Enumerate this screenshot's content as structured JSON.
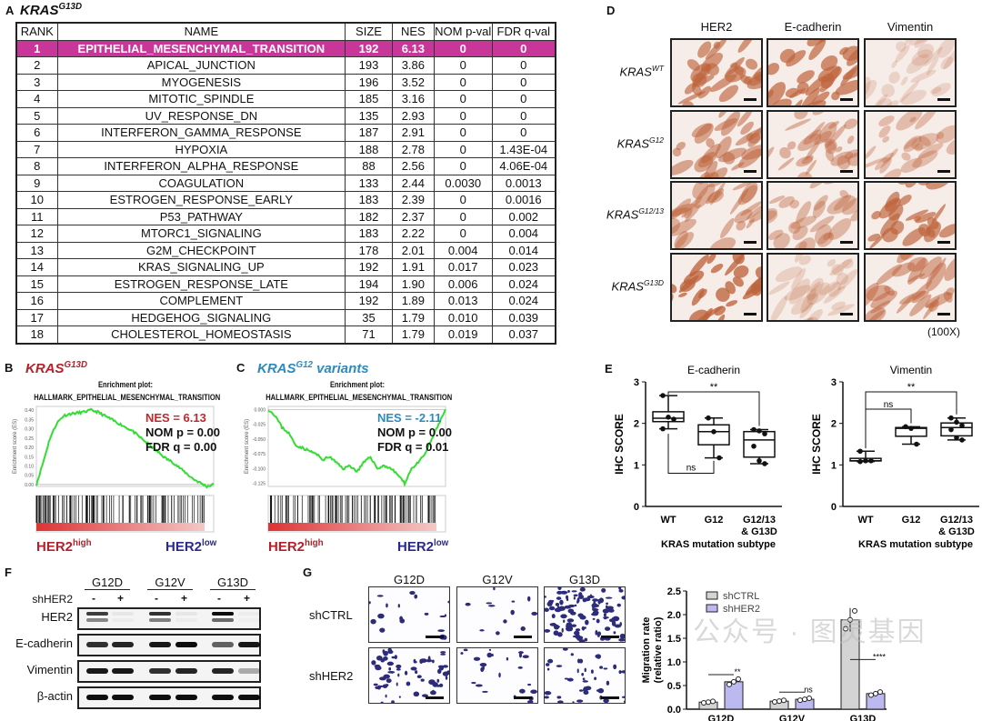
{
  "panelA": {
    "label": "A",
    "title_base": "KRAS",
    "title_sup": "G13D",
    "columns": [
      "RANK",
      "NAME",
      "SIZE",
      "NES",
      "NOM p-val",
      "FDR q-val"
    ],
    "highlight_color": "#c8369a",
    "rows": [
      [
        "1",
        "EPITHELIAL_MESENCHYMAL_TRANSITION",
        "192",
        "6.13",
        "0",
        "0"
      ],
      [
        "2",
        "APICAL_JUNCTION",
        "193",
        "3.86",
        "0",
        "0"
      ],
      [
        "3",
        "MYOGENESIS",
        "196",
        "3.52",
        "0",
        "0"
      ],
      [
        "4",
        "MITOTIC_SPINDLE",
        "185",
        "3.16",
        "0",
        "0"
      ],
      [
        "5",
        "UV_RESPONSE_DN",
        "135",
        "2.93",
        "0",
        "0"
      ],
      [
        "6",
        "INTERFERON_GAMMA_RESPONSE",
        "187",
        "2.91",
        "0",
        "0"
      ],
      [
        "7",
        "HYPOXIA",
        "188",
        "2.78",
        "0",
        "1.43E-04"
      ],
      [
        "8",
        "INTERFERON_ALPHA_RESPONSE",
        "88",
        "2.56",
        "0",
        "4.06E-04"
      ],
      [
        "9",
        "COAGULATION",
        "133",
        "2.44",
        "0.0030",
        "0.0013"
      ],
      [
        "10",
        "ESTROGEN_RESPONSE_EARLY",
        "183",
        "2.39",
        "0",
        "0.0016"
      ],
      [
        "11",
        "P53_PATHWAY",
        "182",
        "2.37",
        "0",
        "0.002"
      ],
      [
        "12",
        "MTORC1_SIGNALING",
        "183",
        "2.22",
        "0",
        "0.004"
      ],
      [
        "13",
        "G2M_CHECKPOINT",
        "178",
        "2.01",
        "0.004",
        "0.014"
      ],
      [
        "14",
        "KRAS_SIGNALING_UP",
        "192",
        "1.91",
        "0.017",
        "0.023"
      ],
      [
        "15",
        "ESTROGEN_RESPONSE_LATE",
        "194",
        "1.90",
        "0.006",
        "0.024"
      ],
      [
        "16",
        "COMPLEMENT",
        "192",
        "1.89",
        "0.013",
        "0.024"
      ],
      [
        "17",
        "HEDGEHOG_SIGNALING",
        "35",
        "1.79",
        "0.010",
        "0.039"
      ],
      [
        "18",
        "CHOLESTEROL_HOMEOSTASIS",
        "71",
        "1.79",
        "0.019",
        "0.037"
      ]
    ]
  },
  "panelB": {
    "label": "B",
    "title_base": "KRAS",
    "title_sup": "G13D",
    "title_color": "#b5202a",
    "plot_title1": "Enrichment plot:",
    "plot_title2": "HALLMARK_EPITHELIAL_MESENCHYMAL_TRANSITION",
    "ylabel": "Enrichment score (ES)",
    "yticks": [
      "0.40",
      "0.35",
      "0.30",
      "0.25",
      "0.20",
      "0.15",
      "0.10",
      "0.05",
      "0.00"
    ],
    "ylim": [
      -0.01,
      0.42
    ],
    "es_curve": [
      0,
      0.12,
      0.25,
      0.33,
      0.37,
      0.38,
      0.385,
      0.39,
      0.4,
      0.39,
      0.37,
      0.35,
      0.33,
      0.31,
      0.29,
      0.26,
      0.23,
      0.2,
      0.17,
      0.14,
      0.12,
      0.09,
      0.06,
      0.03,
      0.01,
      -0.01,
      0
    ],
    "nes": "NES = 6.13",
    "nom": "NOM p = 0.00",
    "fdr": "FDR q = 0.00",
    "nes_color": "#c0282e",
    "high_base": "HER2",
    "high_sup": "high",
    "low_base": "HER2",
    "low_sup": "low"
  },
  "panelC": {
    "label": "C",
    "title_base": "KRAS",
    "title_sup": "G12",
    "title_suffix": " variants",
    "title_color": "#2a8bbf",
    "plot_title1": "Enrichment plot:",
    "plot_title2": "HALLMARK_EPITHELIAL_MESENCHYMAL_TRANSITION",
    "ylabel": "Enrichment score (ES)",
    "yticks": [
      "0.000",
      "-0.025",
      "-0.050",
      "-0.075",
      "-0.100",
      "-0.125"
    ],
    "ylim": [
      -0.13,
      0.005
    ],
    "es_curve": [
      0,
      -0.01,
      -0.03,
      -0.04,
      -0.06,
      -0.065,
      -0.07,
      -0.075,
      -0.085,
      -0.08,
      -0.09,
      -0.1,
      -0.095,
      -0.105,
      -0.09,
      -0.08,
      -0.1,
      -0.095,
      -0.1,
      -0.11,
      -0.125,
      -0.1,
      -0.09,
      -0.075,
      -0.05,
      -0.025,
      0
    ],
    "nes": "NES = -2.11",
    "nom": "NOM p = 0.00",
    "fdr": "FDR q = 0.01",
    "nes_color": "#2a8bbf",
    "high_base": "HER2",
    "high_sup": "high",
    "low_base": "HER2",
    "low_sup": "low"
  },
  "curve_color": "#33dd33",
  "high_color": "#b5202a",
  "low_color": "#2a2a8a",
  "panelD": {
    "label": "D",
    "columns": [
      "HER2",
      "E-cadherin",
      "Vimentin"
    ],
    "rows": [
      {
        "base": "KRAS",
        "sup": "WT"
      },
      {
        "base": "KRAS",
        "sup": "G12"
      },
      {
        "base": "KRAS",
        "sup": "G12/13"
      },
      {
        "base": "KRAS",
        "sup": "G13D"
      }
    ],
    "magnification": "(100X)",
    "stain_level": [
      [
        0.7,
        0.8,
        0.05
      ],
      [
        0.55,
        0.4,
        0.3
      ],
      [
        0.45,
        0.35,
        0.75
      ],
      [
        0.9,
        0.08,
        0.5
      ]
    ]
  },
  "panelE": {
    "label": "E",
    "ylabel": "IHC SCORE",
    "xlabel": "KRAS mutation subtype",
    "categories": [
      "WT",
      "G12",
      "G12/13",
      "& G13D"
    ],
    "charts": [
      {
        "title": "E-cadherin",
        "type": "box",
        "ylim": [
          0,
          3
        ],
        "yticks": [
          "0",
          "1",
          "2",
          "3"
        ],
        "groups": [
          [
            2.67,
            2.15,
            2.1,
            1.87
          ],
          [
            2.13,
            1.8,
            1.17
          ],
          [
            1.85,
            1.82,
            1.75,
            1.45,
            1.1,
            1.03
          ]
        ],
        "sig": [
          {
            "from": 0,
            "to": 2,
            "label": "**",
            "pos": "top"
          },
          {
            "from": 0,
            "to": 1,
            "label": "ns",
            "pos": "bottom"
          }
        ]
      },
      {
        "title": "Vimentin",
        "type": "box",
        "ylim": [
          0,
          3
        ],
        "yticks": [
          "0",
          "1",
          "2",
          "3"
        ],
        "groups": [
          [
            1.33,
            1.1,
            1.1,
            1.08
          ],
          [
            1.92,
            1.88,
            1.5
          ],
          [
            2.13,
            2.03,
            1.95,
            1.85,
            1.65,
            1.6
          ]
        ],
        "sig": [
          {
            "from": 0,
            "to": 2,
            "label": "**",
            "pos": "top"
          },
          {
            "from": 0,
            "to": 1,
            "label": "ns",
            "pos": "mid"
          }
        ]
      }
    ]
  },
  "panelF": {
    "label": "F",
    "groups": [
      "G12D",
      "G12V",
      "G13D"
    ],
    "shlabel": "shHER2",
    "signs": [
      "-",
      "+",
      "-",
      "+",
      "-",
      "+"
    ],
    "proteins": [
      "HER2",
      "E-cadherin",
      "Vimentin",
      "β-actin"
    ],
    "band_intensity": [
      [
        0.75,
        0.05,
        0.8,
        0.05,
        0.95,
        0.03
      ],
      [
        0.8,
        0.85,
        0.9,
        0.95,
        0.6,
        0.9
      ],
      [
        0.9,
        0.9,
        0.8,
        0.85,
        0.85,
        0.3
      ],
      [
        0.95,
        0.95,
        0.95,
        0.95,
        0.95,
        0.95
      ]
    ]
  },
  "panelG": {
    "label": "G",
    "columns": [
      "G12D",
      "G12V",
      "G13D"
    ],
    "rows": [
      "shCTRL",
      "shHER2"
    ],
    "cell_density": [
      [
        0.15,
        0.1,
        0.9
      ],
      [
        0.55,
        0.2,
        0.35
      ]
    ],
    "chart": {
      "type": "bar",
      "ylabel1": "Migration rate",
      "ylabel2": "(relative ratio)",
      "categories": [
        "G12D",
        "G12V",
        "G13D"
      ],
      "ylim": [
        0,
        2.5
      ],
      "yticks": [
        "0.0",
        "0.5",
        "1.0",
        "1.5",
        "2.0",
        "2.5"
      ],
      "series": [
        {
          "name": "shCTRL",
          "values": [
            0.15,
            0.17,
            1.89
          ],
          "color": "#d4d4d4"
        },
        {
          "name": "shHER2",
          "values": [
            0.58,
            0.21,
            0.33
          ],
          "color": "#bcb8f0"
        }
      ],
      "sig": [
        "**",
        "ns",
        "****"
      ],
      "legend": "top-left"
    }
  },
  "watermark": "公众号 · 图灵基因"
}
